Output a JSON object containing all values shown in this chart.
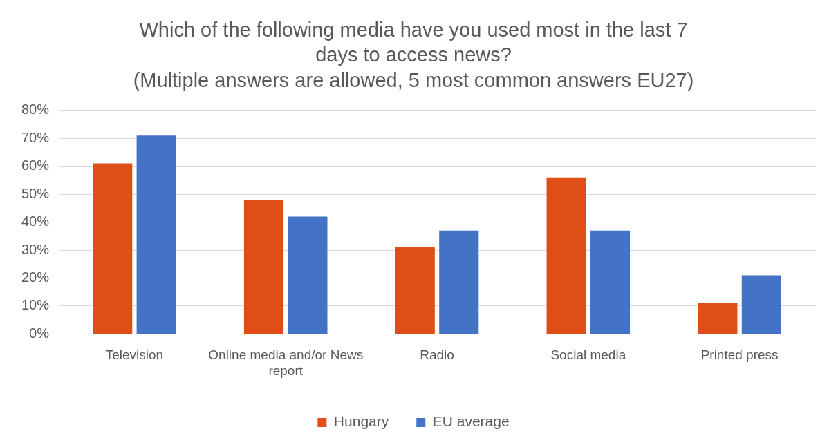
{
  "chart_data": {
    "type": "bar",
    "title": "Which of the following media have you used most in the last 7 days to access news?\n(Multiple answers are allowed, 5 most common answers EU27)",
    "categories": [
      "Television",
      "Online media and/or News report",
      "Radio",
      "Social media",
      "Printed press"
    ],
    "series": [
      {
        "name": "Hungary",
        "color": "#e04e17",
        "values": [
          61,
          48,
          31,
          56,
          11
        ]
      },
      {
        "name": "EU average",
        "color": "#4472c4",
        "values": [
          71,
          42,
          37,
          37,
          21
        ]
      }
    ],
    "ylim": [
      0,
      80
    ],
    "yticks": [
      {
        "value": 0,
        "label": "0%"
      },
      {
        "value": 10,
        "label": "10%"
      },
      {
        "value": 20,
        "label": "20%"
      },
      {
        "value": 30,
        "label": "30%"
      },
      {
        "value": 40,
        "label": "40%"
      },
      {
        "value": 50,
        "label": "50%"
      },
      {
        "value": 60,
        "label": "60%"
      },
      {
        "value": 70,
        "label": "70%"
      },
      {
        "value": 80,
        "label": "80%"
      }
    ],
    "grid": "y",
    "legend": "bottom"
  }
}
